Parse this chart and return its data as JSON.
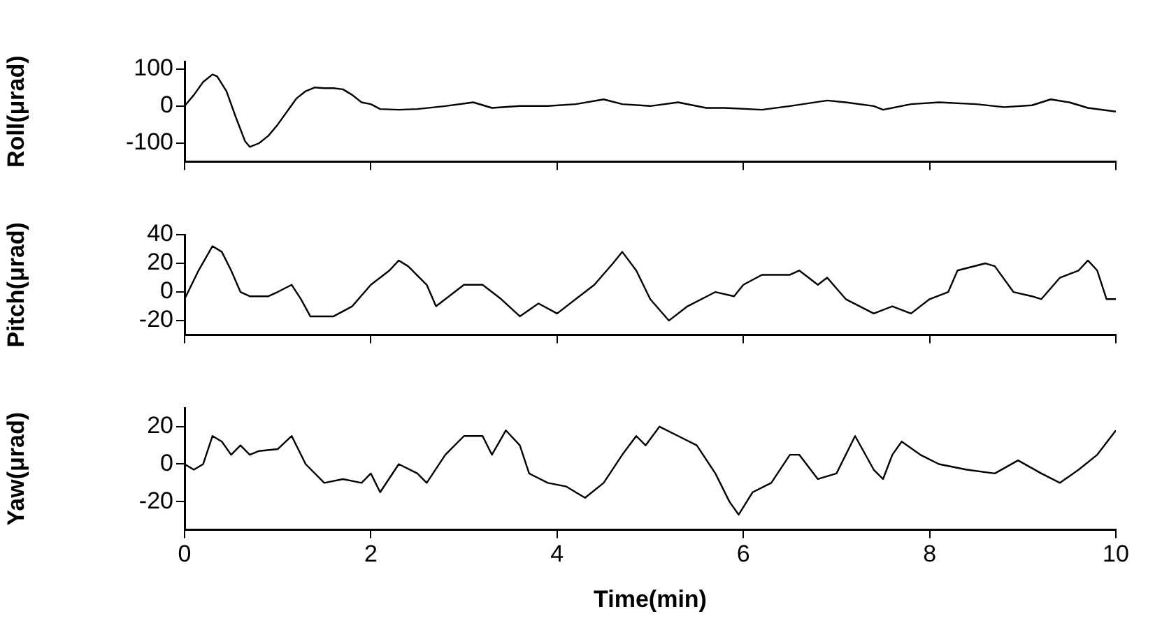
{
  "chart_data": [
    {
      "type": "line",
      "ylabel": "Roll(μrad)",
      "xlim": [
        0,
        10
      ],
      "xticks": [
        0,
        2,
        4,
        6,
        8,
        10
      ],
      "ylim": [
        -150,
        120
      ],
      "yticks": [
        -100,
        0,
        100
      ],
      "tick_labels": "y",
      "grid": false,
      "legend": false,
      "marker": "none",
      "line_style": "solid",
      "series": [
        {
          "color": "#000000",
          "x": [
            0,
            0.1,
            0.2,
            0.3,
            0.35,
            0.45,
            0.55,
            0.65,
            0.7,
            0.8,
            0.9,
            1.0,
            1.1,
            1.2,
            1.3,
            1.4,
            1.5,
            1.6,
            1.7,
            1.8,
            1.9,
            2.0,
            2.1,
            2.3,
            2.5,
            2.8,
            3.1,
            3.3,
            3.6,
            3.9,
            4.2,
            4.5,
            4.7,
            5.0,
            5.3,
            5.6,
            5.8,
            6.2,
            6.5,
            6.9,
            7.1,
            7.4,
            7.5,
            7.8,
            8.1,
            8.5,
            8.8,
            9.1,
            9.3,
            9.5,
            9.7,
            10
          ],
          "values": [
            0,
            30,
            65,
            85,
            80,
            40,
            -30,
            -95,
            -110,
            -100,
            -80,
            -50,
            -15,
            20,
            40,
            50,
            48,
            48,
            45,
            30,
            10,
            5,
            -8,
            -10,
            -8,
            0,
            10,
            -5,
            0,
            0,
            5,
            18,
            5,
            0,
            10,
            -5,
            -5,
            -10,
            0,
            15,
            10,
            0,
            -10,
            5,
            10,
            5,
            -3,
            2,
            18,
            10,
            -5,
            -15
          ]
        }
      ]
    },
    {
      "type": "line",
      "ylabel": "Pitch(μrad)",
      "xlim": [
        0,
        10
      ],
      "xticks": [
        0,
        2,
        4,
        6,
        8,
        10
      ],
      "ylim": [
        -30,
        40
      ],
      "yticks": [
        -20,
        0,
        20,
        40
      ],
      "tick_labels": "y",
      "grid": false,
      "legend": false,
      "marker": "none",
      "line_style": "solid",
      "series": [
        {
          "color": "#000000",
          "x": [
            0,
            0.15,
            0.3,
            0.4,
            0.5,
            0.6,
            0.7,
            0.9,
            1.0,
            1.15,
            1.25,
            1.35,
            1.6,
            1.8,
            2.0,
            2.2,
            2.3,
            2.4,
            2.6,
            2.7,
            2.9,
            3.0,
            3.2,
            3.4,
            3.6,
            3.8,
            4.0,
            4.2,
            4.4,
            4.6,
            4.7,
            4.85,
            5.0,
            5.2,
            5.4,
            5.7,
            5.9,
            6.0,
            6.2,
            6.5,
            6.6,
            6.8,
            6.9,
            7.1,
            7.4,
            7.6,
            7.8,
            8.0,
            8.2,
            8.3,
            8.6,
            8.7,
            8.9,
            9.1,
            9.2,
            9.4,
            9.6,
            9.7,
            9.8,
            9.9,
            10
          ],
          "values": [
            -5,
            15,
            32,
            28,
            15,
            0,
            -3,
            -3,
            0,
            5,
            -5,
            -17,
            -17,
            -10,
            5,
            15,
            22,
            18,
            5,
            -10,
            0,
            5,
            5,
            -5,
            -17,
            -8,
            -15,
            -5,
            5,
            20,
            28,
            15,
            -5,
            -20,
            -10,
            0,
            -3,
            5,
            12,
            12,
            15,
            5,
            10,
            -5,
            -15,
            -10,
            -15,
            -5,
            0,
            15,
            20,
            18,
            0,
            -3,
            -5,
            10,
            15,
            22,
            15,
            -5,
            -5
          ]
        }
      ]
    },
    {
      "type": "line",
      "ylabel": "Yaw(μrad)",
      "xlabel": "Time(min)",
      "xlim": [
        0,
        10
      ],
      "xticks": [
        0,
        2,
        4,
        6,
        8,
        10
      ],
      "ylim": [
        -35,
        30
      ],
      "yticks": [
        -20,
        0,
        20
      ],
      "grid": false,
      "legend": false,
      "marker": "none",
      "line_style": "solid",
      "series": [
        {
          "color": "#000000",
          "x": [
            0,
            0.1,
            0.2,
            0.3,
            0.4,
            0.5,
            0.6,
            0.7,
            0.8,
            1.0,
            1.15,
            1.3,
            1.5,
            1.7,
            1.9,
            2.0,
            2.1,
            2.3,
            2.5,
            2.6,
            2.8,
            3.0,
            3.2,
            3.3,
            3.45,
            3.6,
            3.7,
            3.9,
            4.1,
            4.3,
            4.5,
            4.7,
            4.85,
            4.95,
            5.1,
            5.3,
            5.5,
            5.7,
            5.85,
            5.95,
            6.1,
            6.3,
            6.5,
            6.6,
            6.8,
            7.0,
            7.2,
            7.4,
            7.5,
            7.6,
            7.7,
            7.9,
            8.1,
            8.4,
            8.7,
            8.95,
            9.2,
            9.4,
            9.6,
            9.8,
            10
          ],
          "values": [
            0,
            -3,
            0,
            15,
            12,
            5,
            10,
            5,
            7,
            8,
            15,
            0,
            -10,
            -8,
            -10,
            -5,
            -15,
            0,
            -5,
            -10,
            5,
            15,
            15,
            5,
            18,
            10,
            -5,
            -10,
            -12,
            -18,
            -10,
            5,
            15,
            10,
            20,
            15,
            10,
            -5,
            -20,
            -27,
            -15,
            -10,
            5,
            5,
            -8,
            -5,
            15,
            -3,
            -8,
            5,
            12,
            5,
            0,
            -3,
            -5,
            2,
            -5,
            -10,
            -3,
            5,
            18
          ]
        }
      ]
    }
  ]
}
